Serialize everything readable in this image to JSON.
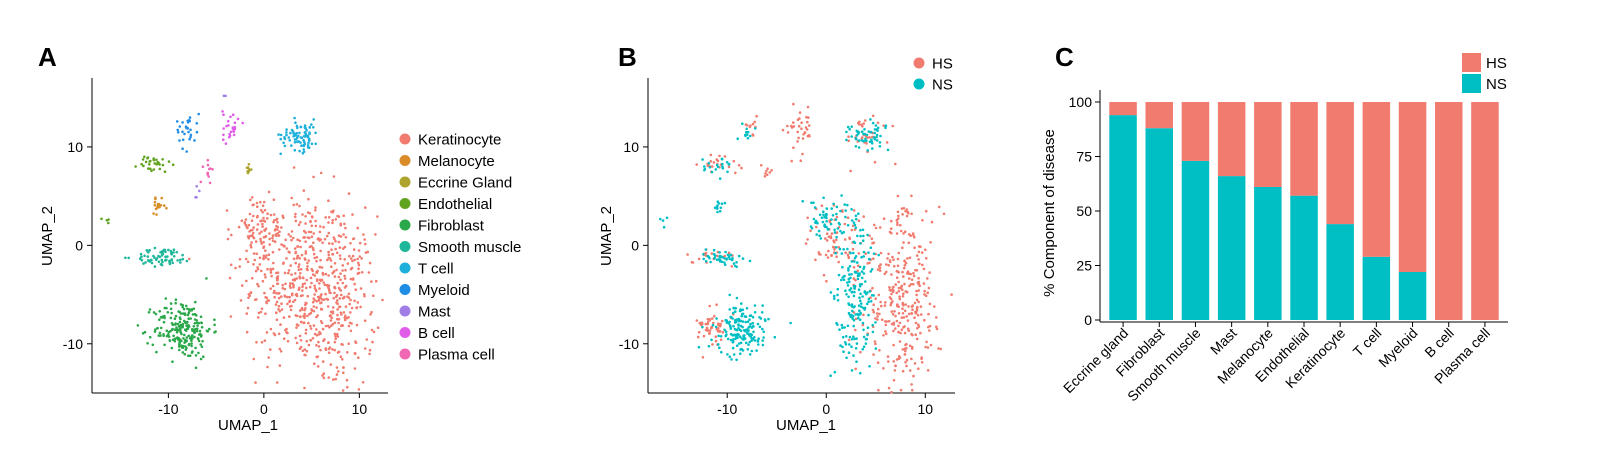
{
  "panels": {
    "a": {
      "letter": "A"
    },
    "b": {
      "letter": "B"
    },
    "c": {
      "letter": "C"
    }
  },
  "colors": {
    "HS": "#F07B6E",
    "NS": "#00BFC4"
  },
  "chart_data": [
    {
      "type": "scatter",
      "panel": "A",
      "xlabel": "UMAP_1",
      "ylabel": "UMAP_2",
      "xlim": [
        -18,
        13
      ],
      "ylim": [
        -15,
        17
      ],
      "x_ticks": [
        -10,
        0,
        10
      ],
      "y_ticks": [
        -10,
        0,
        10
      ],
      "x_tick_labels": [
        "-10",
        "0",
        "10"
      ],
      "y_tick_labels": [
        "-10",
        "0",
        "10"
      ],
      "legend_position": "right",
      "series": [
        {
          "name": "Keratinocyte",
          "color": "#F07B6E",
          "clusters": [
            {
              "cx": 3.5,
              "cy": -3.5,
              "sx": 2.8,
              "sy": 4.5,
              "n": 420
            },
            {
              "cx": 8.0,
              "cy": -6.0,
              "sx": 1.8,
              "sy": 4.5,
              "n": 260
            },
            {
              "cx": -0.5,
              "cy": 1.5,
              "sx": 1.4,
              "sy": 1.8,
              "n": 90
            }
          ]
        },
        {
          "name": "Melanocyte",
          "color": "#D98C27",
          "clusters": [
            {
              "cx": -11.0,
              "cy": 4.0,
              "sx": 0.35,
              "sy": 0.35,
              "n": 18
            }
          ]
        },
        {
          "name": "Eccrine Gland",
          "color": "#ADA32E",
          "clusters": [
            {
              "cx": -1.8,
              "cy": 7.5,
              "sx": 0.25,
              "sy": 0.3,
              "n": 8
            }
          ]
        },
        {
          "name": "Endothelial",
          "color": "#61A31F",
          "clusters": [
            {
              "cx": -11.5,
              "cy": 8.2,
              "sx": 0.9,
              "sy": 0.45,
              "n": 30
            },
            {
              "cx": -16.5,
              "cy": 2.4,
              "sx": 0.2,
              "sy": 0.3,
              "n": 4
            }
          ]
        },
        {
          "name": "Fibroblast",
          "color": "#2BA84A",
          "clusters": [
            {
              "cx": -8.5,
              "cy": -8.5,
              "sx": 1.5,
              "sy": 1.5,
              "n": 220
            }
          ]
        },
        {
          "name": "Smooth muscle",
          "color": "#1FB79B",
          "clusters": [
            {
              "cx": -10.5,
              "cy": -1.2,
              "sx": 1.5,
              "sy": 0.45,
              "n": 70
            }
          ]
        },
        {
          "name": "T cell",
          "color": "#1EB0DA",
          "clusters": [
            {
              "cx": 3.8,
              "cy": 11.2,
              "sx": 1.0,
              "sy": 0.8,
              "n": 80
            }
          ]
        },
        {
          "name": "Myeloid",
          "color": "#1F8DE6",
          "clusters": [
            {
              "cx": -8.0,
              "cy": 11.8,
              "sx": 0.6,
              "sy": 1.0,
              "n": 30
            }
          ]
        },
        {
          "name": "Mast",
          "color": "#A07EE6",
          "clusters": [
            {
              "cx": -7.0,
              "cy": 5.5,
              "sx": 0.2,
              "sy": 0.3,
              "n": 4
            },
            {
              "cx": -4.0,
              "cy": 15.2,
              "sx": 0.1,
              "sy": 0.1,
              "n": 2
            }
          ]
        },
        {
          "name": "B cell",
          "color": "#E05CE8",
          "clusters": [
            {
              "cx": -3.5,
              "cy": 12.0,
              "sx": 0.4,
              "sy": 1.0,
              "n": 25
            }
          ]
        },
        {
          "name": "Plasma cell",
          "color": "#F067B4",
          "clusters": [
            {
              "cx": -5.8,
              "cy": 7.5,
              "sx": 0.25,
              "sy": 0.5,
              "n": 12
            }
          ]
        }
      ]
    },
    {
      "type": "scatter",
      "panel": "B",
      "xlabel": "UMAP_1",
      "ylabel": "UMAP_2",
      "xlim": [
        -18,
        13
      ],
      "ylim": [
        -15,
        17
      ],
      "x_ticks": [
        -10,
        0,
        10
      ],
      "y_ticks": [
        -10,
        0,
        10
      ],
      "x_tick_labels": [
        "-10",
        "0",
        "10"
      ],
      "y_tick_labels": [
        "-10",
        "0",
        "10"
      ],
      "legend_position": "top-right",
      "series": [
        {
          "name": "HS",
          "color": "#F07B6E",
          "clusters": [
            {
              "cx": 7.5,
              "cy": -5.5,
              "sx": 2.0,
              "sy": 4.5,
              "n": 330
            },
            {
              "cx": 1.5,
              "cy": 0.5,
              "sx": 1.5,
              "sy": 2.0,
              "n": 80
            },
            {
              "cx": -11.5,
              "cy": -8.5,
              "sx": 0.8,
              "sy": 1.0,
              "n": 50
            },
            {
              "cx": -2.5,
              "cy": 12.0,
              "sx": 0.7,
              "sy": 1.2,
              "n": 35
            },
            {
              "cx": -10.5,
              "cy": 8.2,
              "sx": 1.1,
              "sy": 0.5,
              "n": 22
            },
            {
              "cx": -11.5,
              "cy": -1.2,
              "sx": 1.2,
              "sy": 0.45,
              "n": 20
            },
            {
              "cx": -6.0,
              "cy": 7.5,
              "sx": 0.3,
              "sy": 0.4,
              "n": 8
            },
            {
              "cx": -7.5,
              "cy": 12.0,
              "sx": 0.5,
              "sy": 0.5,
              "n": 10
            },
            {
              "cx": 4.0,
              "cy": 11.5,
              "sx": 1.2,
              "sy": 0.8,
              "n": 30
            }
          ]
        },
        {
          "name": "NS",
          "color": "#00BFC4",
          "clusters": [
            {
              "cx": 3.0,
              "cy": -5.0,
              "sx": 1.0,
              "sy": 3.8,
              "n": 190
            },
            {
              "cx": 0.0,
              "cy": 2.5,
              "sx": 1.2,
              "sy": 1.0,
              "n": 60
            },
            {
              "cx": -8.5,
              "cy": -8.5,
              "sx": 1.3,
              "sy": 1.3,
              "n": 170
            },
            {
              "cx": 4.0,
              "cy": 11.0,
              "sx": 1.0,
              "sy": 0.7,
              "n": 55
            },
            {
              "cx": -10.5,
              "cy": -1.2,
              "sx": 1.3,
              "sy": 0.4,
              "n": 45
            },
            {
              "cx": -11.0,
              "cy": 8.0,
              "sx": 0.7,
              "sy": 0.4,
              "n": 20
            },
            {
              "cx": -11.0,
              "cy": 4.0,
              "sx": 0.35,
              "sy": 0.35,
              "n": 12
            },
            {
              "cx": -8.0,
              "cy": 11.8,
              "sx": 0.4,
              "sy": 0.6,
              "n": 12
            },
            {
              "cx": -16.5,
              "cy": 2.4,
              "sx": 0.2,
              "sy": 0.3,
              "n": 4
            }
          ]
        }
      ]
    },
    {
      "type": "bar",
      "stacked": true,
      "panel": "C",
      "ylabel": "% Component of disease",
      "xlabel": "",
      "ylim": [
        0,
        100
      ],
      "y_ticks": [
        0,
        25,
        50,
        75,
        100
      ],
      "y_tick_labels": [
        "0",
        "25",
        "50",
        "75",
        "100"
      ],
      "legend_position": "top-right",
      "categories": [
        "Eccrine gland",
        "Fibroblast",
        "Smooth muscle",
        "Mast",
        "Melanocyte",
        "Endothelial",
        "Keratinocyte",
        "T cell",
        "Myeloid",
        "B cell",
        "Plasma cell"
      ],
      "series": [
        {
          "name": "NS",
          "color": "#00BFC4",
          "values": [
            94,
            88,
            73,
            66,
            61,
            57,
            44,
            29,
            22,
            0,
            0
          ]
        },
        {
          "name": "HS",
          "color": "#F07B6E",
          "values": [
            6,
            12,
            27,
            34,
            39,
            43,
            56,
            71,
            78,
            100,
            100
          ]
        }
      ],
      "legend_order": [
        "HS",
        "NS"
      ]
    }
  ]
}
